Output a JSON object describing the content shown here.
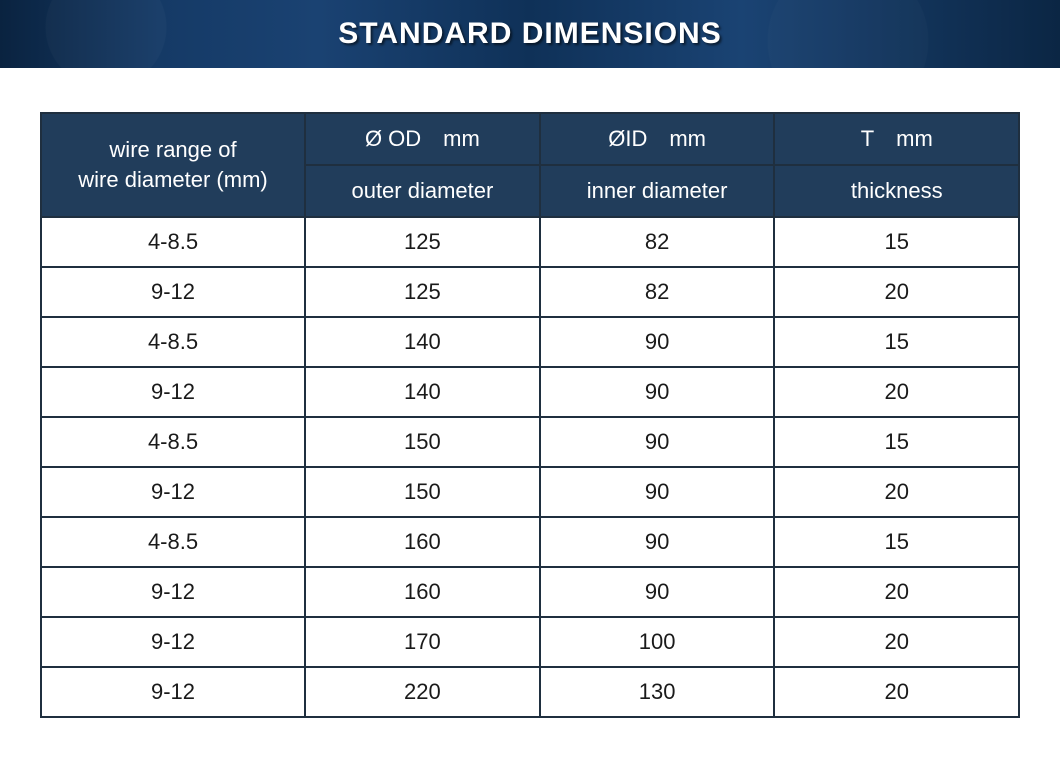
{
  "banner": {
    "title": "STANDARD DIMENSIONS"
  },
  "table": {
    "header": {
      "wire_range_line1": "wire range of",
      "wire_range_line2": "wire diameter (mm)",
      "od_top": "Ø OD mm",
      "id_top": "ØID mm",
      "t_top": "T mm",
      "od_sub": "outer diameter",
      "id_sub": "inner diameter",
      "t_sub": "thickness"
    },
    "rows": [
      {
        "range": "4-8.5",
        "od": "125",
        "id": "82",
        "t": "15"
      },
      {
        "range": "9-12",
        "od": "125",
        "id": "82",
        "t": "20"
      },
      {
        "range": "4-8.5",
        "od": "140",
        "id": "90",
        "t": "15"
      },
      {
        "range": "9-12",
        "od": "140",
        "id": "90",
        "t": "20"
      },
      {
        "range": "4-8.5",
        "od": "150",
        "id": "90",
        "t": "15"
      },
      {
        "range": "9-12",
        "od": "150",
        "id": "90",
        "t": "20"
      },
      {
        "range": "4-8.5",
        "od": "160",
        "id": "90",
        "t": "15"
      },
      {
        "range": "9-12",
        "od": "160",
        "id": "90",
        "t": "20"
      },
      {
        "range": "9-12",
        "od": "170",
        "id": "100",
        "t": "20"
      },
      {
        "range": "9-12",
        "od": "220",
        "id": "130",
        "t": "20"
      }
    ],
    "colors": {
      "header_bg": "#213d5b",
      "header_text": "#ffffff",
      "cell_bg": "#ffffff",
      "cell_text": "#1a1a1a",
      "border": "#1f2f3f",
      "banner_text": "#ffffff"
    }
  }
}
